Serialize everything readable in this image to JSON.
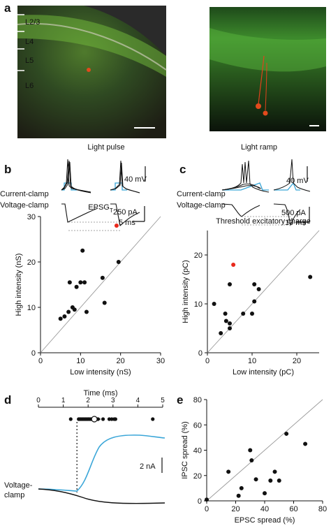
{
  "panel_a": {
    "label": "a",
    "layers": [
      "L2/3",
      "L4",
      "L5",
      "L6"
    ]
  },
  "panel_b": {
    "label": "b",
    "title": "Light pulse",
    "voltage_scale": "40 mV",
    "current_scale": "250 pA",
    "time_scale": "5 ms",
    "trace_labels": [
      "Current-clamp",
      "Voltage-clamp"
    ],
    "colors": {
      "stimulus": "#3aa6d8",
      "traces": "#111111"
    }
  },
  "panel_c": {
    "label": "c",
    "title": "Light ramp",
    "voltage_scale": "40 mV",
    "current_scale": "500 pA",
    "time_scale": "10 ms",
    "trace_labels": [
      "Current-clamp",
      "Voltage-clamp"
    ]
  },
  "panel_d": {
    "label": "d",
    "xlabel": "Time (ms)",
    "ticks": [
      "0",
      "1",
      "2",
      "3",
      "4",
      "5"
    ],
    "current_scale": "2 nA",
    "trace_label": "Voltage-\nclamp"
  },
  "panel_e": {
    "label": "e"
  },
  "chart_data": [
    {
      "type": "scatter",
      "id": "epsg",
      "title": "EPSG",
      "title_sub": "T",
      "xlabel": "Low intensity (nS)",
      "ylabel": "High intensity (nS)",
      "xlim": [
        0,
        30
      ],
      "ylim": [
        0,
        30
      ],
      "xticks": [
        0,
        10,
        20,
        30
      ],
      "yticks": [
        0,
        10,
        20,
        30
      ],
      "unity_line": true,
      "points": [
        [
          5,
          7.5
        ],
        [
          6,
          8
        ],
        [
          7,
          9
        ],
        [
          7.3,
          15.5
        ],
        [
          8,
          10
        ],
        [
          8.5,
          9.5
        ],
        [
          9,
          14.5
        ],
        [
          10,
          15.5
        ],
        [
          10.5,
          22.5
        ],
        [
          11,
          15.5
        ],
        [
          11.5,
          9
        ],
        [
          15.5,
          16.5
        ],
        [
          16,
          11
        ],
        [
          19.5,
          20
        ]
      ],
      "highlight": [
        [
          19,
          28
        ]
      ],
      "highlight_color": "#e8291c"
    },
    {
      "type": "scatter",
      "id": "charge",
      "title": "Threshold excitatory charge",
      "xlabel": "Low intensity (pC)",
      "ylabel": "High intensity (pC)",
      "xlim": [
        0,
        25
      ],
      "ylim": [
        0,
        25
      ],
      "xticks": [
        0,
        10,
        20
      ],
      "yticks": [
        0,
        10,
        20
      ],
      "unity_line": true,
      "points": [
        [
          1.5,
          10
        ],
        [
          3,
          4
        ],
        [
          4,
          8
        ],
        [
          4.2,
          6.5
        ],
        [
          5,
          6
        ],
        [
          5,
          5
        ],
        [
          5,
          14
        ],
        [
          8,
          8
        ],
        [
          10,
          8
        ],
        [
          10.5,
          10.5
        ],
        [
          10.5,
          14
        ],
        [
          11.5,
          13
        ],
        [
          23,
          15.5
        ]
      ],
      "highlight": [
        [
          5.8,
          18
        ]
      ],
      "highlight_color": "#e8291c"
    },
    {
      "type": "scatter",
      "id": "spread",
      "xlabel": "EPSC spread (%)",
      "ylabel": "IPSC spread (%)",
      "xlim": [
        0,
        80
      ],
      "ylim": [
        0,
        80
      ],
      "xticks": [
        0,
        20,
        40,
        60,
        80
      ],
      "yticks": [
        0,
        20,
        40,
        60,
        80
      ],
      "unity_line": true,
      "points": [
        [
          0,
          1
        ],
        [
          15,
          23
        ],
        [
          22,
          4
        ],
        [
          24,
          10
        ],
        [
          30,
          40
        ],
        [
          31,
          32
        ],
        [
          34,
          17
        ],
        [
          40,
          6
        ],
        [
          44,
          16
        ],
        [
          47,
          23
        ],
        [
          50,
          16
        ],
        [
          55,
          53
        ],
        [
          68,
          45
        ]
      ]
    },
    {
      "type": "scatter",
      "id": "onset",
      "xlabel": "Time (ms)",
      "xlim": [
        0,
        5
      ],
      "points_x": [
        1.3,
        1.62,
        1.65,
        1.7,
        1.75,
        1.8,
        1.85,
        1.9,
        1.95,
        2.0,
        2.05,
        2.1,
        2.15,
        2.2,
        2.25,
        2.3,
        2.35,
        2.4,
        2.6,
        2.85,
        2.95,
        3.05,
        3.1,
        4.6
      ],
      "mean": 2.25,
      "mean_sd": 0.25,
      "onset_marker": 1.55
    }
  ]
}
